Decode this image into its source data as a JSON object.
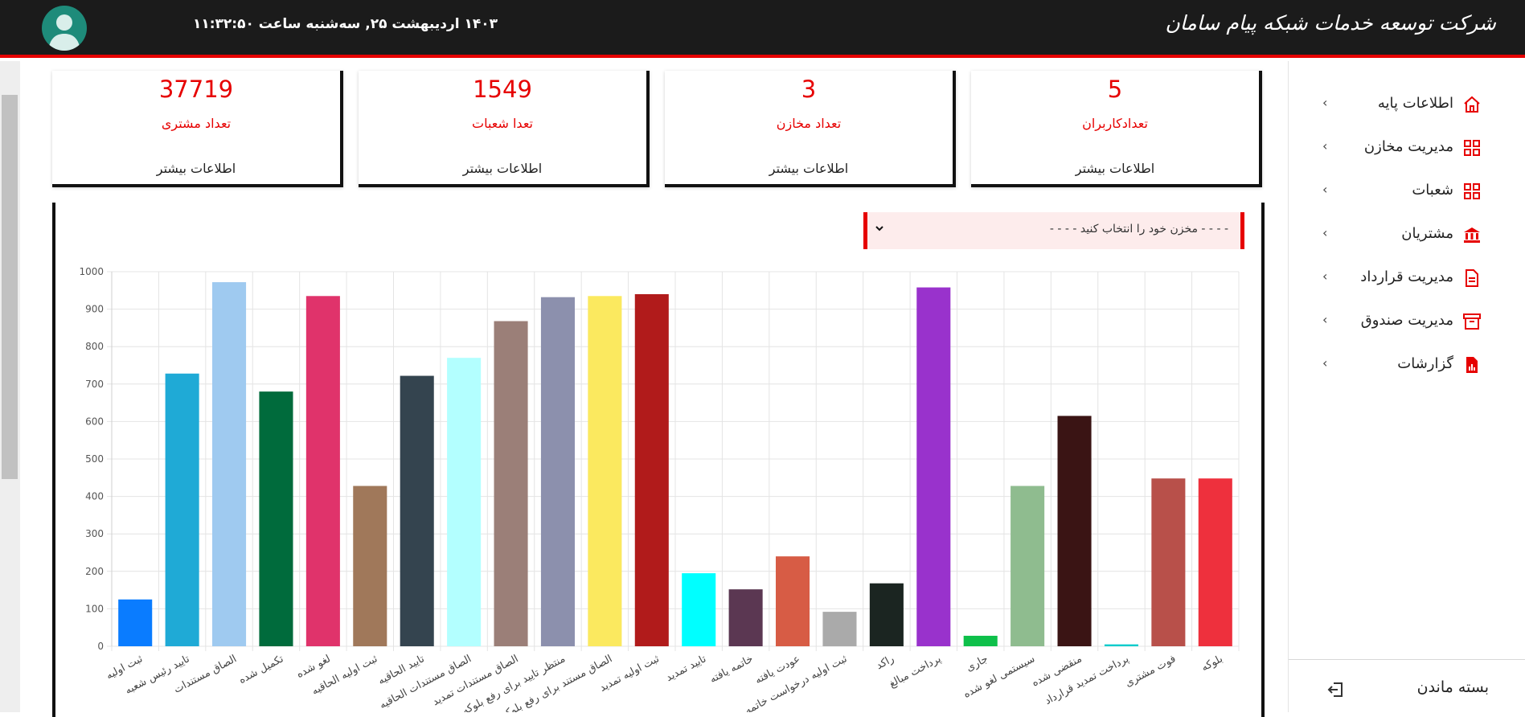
{
  "header": {
    "datetime": "۱۴۰۳ اردیبهشت ۲۵, سه‌شنبه ساعت ۱۱:۳۲:۵۰",
    "brand": "شرکت توسعه خدمات شبکه پیام سامان",
    "avatar_icon": "user-avatar-icon"
  },
  "cards": [
    {
      "value": "37719",
      "title": "تعداد مشتری",
      "more": "اطلاعات بیشتر"
    },
    {
      "value": "1549",
      "title": "تعدا شعبات",
      "more": "اطلاعات بیشتر"
    },
    {
      "value": "3",
      "title": "تعداد مخازن",
      "more": "اطلاعات بیشتر"
    },
    {
      "value": "5",
      "title": "تعدادکاربران",
      "more": "اطلاعات بیشتر"
    }
  ],
  "sidebar": {
    "items": [
      {
        "label": "اطلاعات پایه",
        "icon": "home-icon"
      },
      {
        "label": "مدیریت مخازن",
        "icon": "grid-icon"
      },
      {
        "label": "شعبات",
        "icon": "grid-icon"
      },
      {
        "label": "مشتریان",
        "icon": "bank-icon"
      },
      {
        "label": "مدیریت قرارداد",
        "icon": "document-icon"
      },
      {
        "label": "مدیریت صندوق",
        "icon": "archive-icon"
      },
      {
        "label": "گزارشات",
        "icon": "report-icon"
      }
    ],
    "collapse_label": "بسته ماندن",
    "collapse_icon": "logout-icon"
  },
  "filter": {
    "placeholder": "- - - - مخزن خود را انتخاب کنید - - - -"
  },
  "colors": {
    "accent": "#e60000",
    "header_bg": "#1b1b1b"
  },
  "chart_data": {
    "type": "bar",
    "ylim": [
      0,
      1000
    ],
    "yticks": [
      0,
      100,
      200,
      300,
      400,
      500,
      600,
      700,
      800,
      900,
      1000
    ],
    "grid": true,
    "categories": [
      "ثبت اولیه",
      "تایید رئیس شعبه",
      "الصاق مستندات",
      "تکمیل شده",
      "لغو شده",
      "ثبت اولیه الحاقیه",
      "تایید الحاقیه",
      "الصاق مستندات الحاقیه",
      "الصاق مستندات تمدید",
      "منتظر تایید برای رفع بلوکه",
      "الصاق مستند برای رفع بلوکه",
      "ثبت اولیه تمدید",
      "تایید تمدید",
      "خاتمه یافته",
      "عودت یافته",
      "ثبت اولیه درخواست خاتمه",
      "راکد",
      "پرداخت مبالغ",
      "جاری",
      "سیستمی لغو شده",
      "منقضی شده",
      "پرداخت تمدید قرارداد",
      "فوت مشتری",
      "بلوکه"
    ],
    "values": [
      125,
      728,
      972,
      680,
      935,
      428,
      722,
      770,
      868,
      932,
      935,
      940,
      195,
      152,
      240,
      92,
      168,
      958,
      28,
      428,
      615,
      5,
      448,
      448
    ],
    "colors": [
      "#0a7cff",
      "#1faad6",
      "#9fcaf0",
      "#006b3c",
      "#e0336b",
      "#a0785a",
      "#34444f",
      "#b3ffff",
      "#9b7f78",
      "#8c90ad",
      "#fbe95f",
      "#b11b1b",
      "#00ffff",
      "#5b3752",
      "#d75c45",
      "#aaaaaa",
      "#1b2521",
      "#9932cc",
      "#0ec04a",
      "#8fbc8f",
      "#3a1414",
      "#00cccc",
      "#b8504a",
      "#ee303d"
    ]
  }
}
